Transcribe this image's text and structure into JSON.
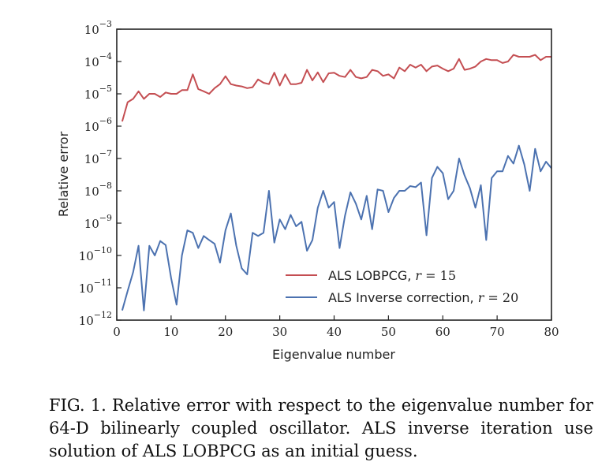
{
  "caption": "FIG. 1. Relative error with respect to the eigenvalue number for 64-D bilinearly coupled oscillator. ALS inverse iteration use solution of ALS LOBPCG as an initial guess.",
  "chart_data": {
    "type": "line",
    "xlabel": "Eigenvalue number",
    "ylabel": "Relative error",
    "xlim": [
      0,
      80
    ],
    "ylim": [
      1e-12,
      0.001
    ],
    "yscale": "log",
    "grid": false,
    "legend_position": "bottom-right",
    "x_ticks": [
      0,
      10,
      20,
      30,
      40,
      50,
      60,
      70,
      80
    ],
    "y_ticks": [
      {
        "exp": -3,
        "label_base": "10",
        "label_exp": "−3"
      },
      {
        "exp": -4,
        "label_base": "10",
        "label_exp": "−4"
      },
      {
        "exp": -5,
        "label_base": "10",
        "label_exp": "−5"
      },
      {
        "exp": -6,
        "label_base": "10",
        "label_exp": "−6"
      },
      {
        "exp": -7,
        "label_base": "10",
        "label_exp": "−7"
      },
      {
        "exp": -8,
        "label_base": "10",
        "label_exp": "−8"
      },
      {
        "exp": -9,
        "label_base": "10",
        "label_exp": "−9"
      },
      {
        "exp": -10,
        "label_base": "10",
        "label_exp": "−10"
      },
      {
        "exp": -11,
        "label_base": "10",
        "label_exp": "−11"
      },
      {
        "exp": -12,
        "label_base": "10",
        "label_exp": "−12"
      }
    ],
    "x": [
      1,
      2,
      3,
      4,
      5,
      6,
      7,
      8,
      9,
      10,
      11,
      12,
      13,
      14,
      15,
      16,
      17,
      18,
      19,
      20,
      21,
      22,
      23,
      24,
      25,
      26,
      27,
      28,
      29,
      30,
      31,
      32,
      33,
      34,
      35,
      36,
      37,
      38,
      39,
      40,
      41,
      42,
      43,
      44,
      45,
      46,
      47,
      48,
      49,
      50,
      51,
      52,
      53,
      54,
      55,
      56,
      57,
      58,
      59,
      60,
      61,
      62,
      63,
      64,
      65,
      66,
      67,
      68,
      69,
      70,
      71,
      72,
      73,
      74,
      75,
      76,
      77,
      78,
      79,
      80
    ],
    "series": [
      {
        "name": "ALS LOBPCG, r = 15",
        "legend_text": "ALS LOBPCG, ",
        "legend_var": "r",
        "legend_eq": " = 15",
        "color": "#c44e52",
        "values": [
          1.4e-06,
          5.5e-06,
          7e-06,
          1.2e-05,
          7e-06,
          1e-05,
          1e-05,
          8e-06,
          1.1e-05,
          1e-05,
          1e-05,
          1.3e-05,
          1.3e-05,
          4e-05,
          1.4e-05,
          1.2e-05,
          1e-05,
          1.5e-05,
          2e-05,
          3.5e-05,
          2e-05,
          1.8e-05,
          1.7e-05,
          1.5e-05,
          1.6e-05,
          2.8e-05,
          2.2e-05,
          2e-05,
          4.5e-05,
          1.8e-05,
          4e-05,
          2e-05,
          2e-05,
          2.2e-05,
          5.5e-05,
          2.6e-05,
          4.6e-05,
          2.3e-05,
          4.3e-05,
          4.5e-05,
          3.6e-05,
          3.3e-05,
          5.5e-05,
          3.3e-05,
          3e-05,
          3.3e-05,
          5.5e-05,
          5e-05,
          3.6e-05,
          4e-05,
          3e-05,
          6.5e-05,
          5e-05,
          8e-05,
          6.5e-05,
          8e-05,
          5e-05,
          7e-05,
          7.5e-05,
          6e-05,
          5e-05,
          6e-05,
          0.00012,
          5.5e-05,
          6e-05,
          7e-05,
          0.0001,
          0.00012,
          0.00011,
          0.00011,
          9e-05,
          0.0001,
          0.00016,
          0.00014,
          0.00014,
          0.00014,
          0.00016,
          0.00011,
          0.00014,
          0.00014
        ]
      },
      {
        "name": "ALS Inverse correction, r = 20",
        "legend_text": "ALS Inverse correction, ",
        "legend_var": "r",
        "legend_eq": " = 20",
        "color": "#4c72b0",
        "values": [
          2e-12,
          8e-12,
          3e-11,
          2e-10,
          2e-12,
          2e-10,
          1e-10,
          2.8e-10,
          2.1e-10,
          2e-11,
          3e-12,
          1e-10,
          6e-10,
          5e-10,
          1.7e-10,
          4e-10,
          3e-10,
          2.3e-10,
          6e-11,
          6e-10,
          2e-09,
          2e-10,
          4e-11,
          2.6e-11,
          5e-10,
          4e-10,
          5e-10,
          1e-08,
          2.5e-10,
          1.3e-09,
          6.5e-10,
          1.8e-09,
          8e-10,
          1.1e-09,
          1.4e-10,
          3e-10,
          3e-09,
          1e-08,
          3e-09,
          4.5e-09,
          1.7e-10,
          1.7e-09,
          9e-09,
          4e-09,
          1.3e-09,
          7e-09,
          6.5e-10,
          1.1e-08,
          1e-08,
          2.2e-09,
          6e-09,
          1e-08,
          1e-08,
          1.4e-08,
          1.3e-08,
          1.8e-08,
          4.2e-10,
          2.5e-08,
          5.5e-08,
          3.5e-08,
          5.5e-09,
          1e-08,
          1e-07,
          3e-08,
          1.2e-08,
          3e-09,
          1.5e-08,
          3e-10,
          2.5e-08,
          4e-08,
          4e-08,
          1.2e-07,
          7e-08,
          2.5e-07,
          6.5e-08,
          1e-08,
          2e-07,
          4e-08,
          8e-08,
          5e-08
        ]
      }
    ]
  }
}
